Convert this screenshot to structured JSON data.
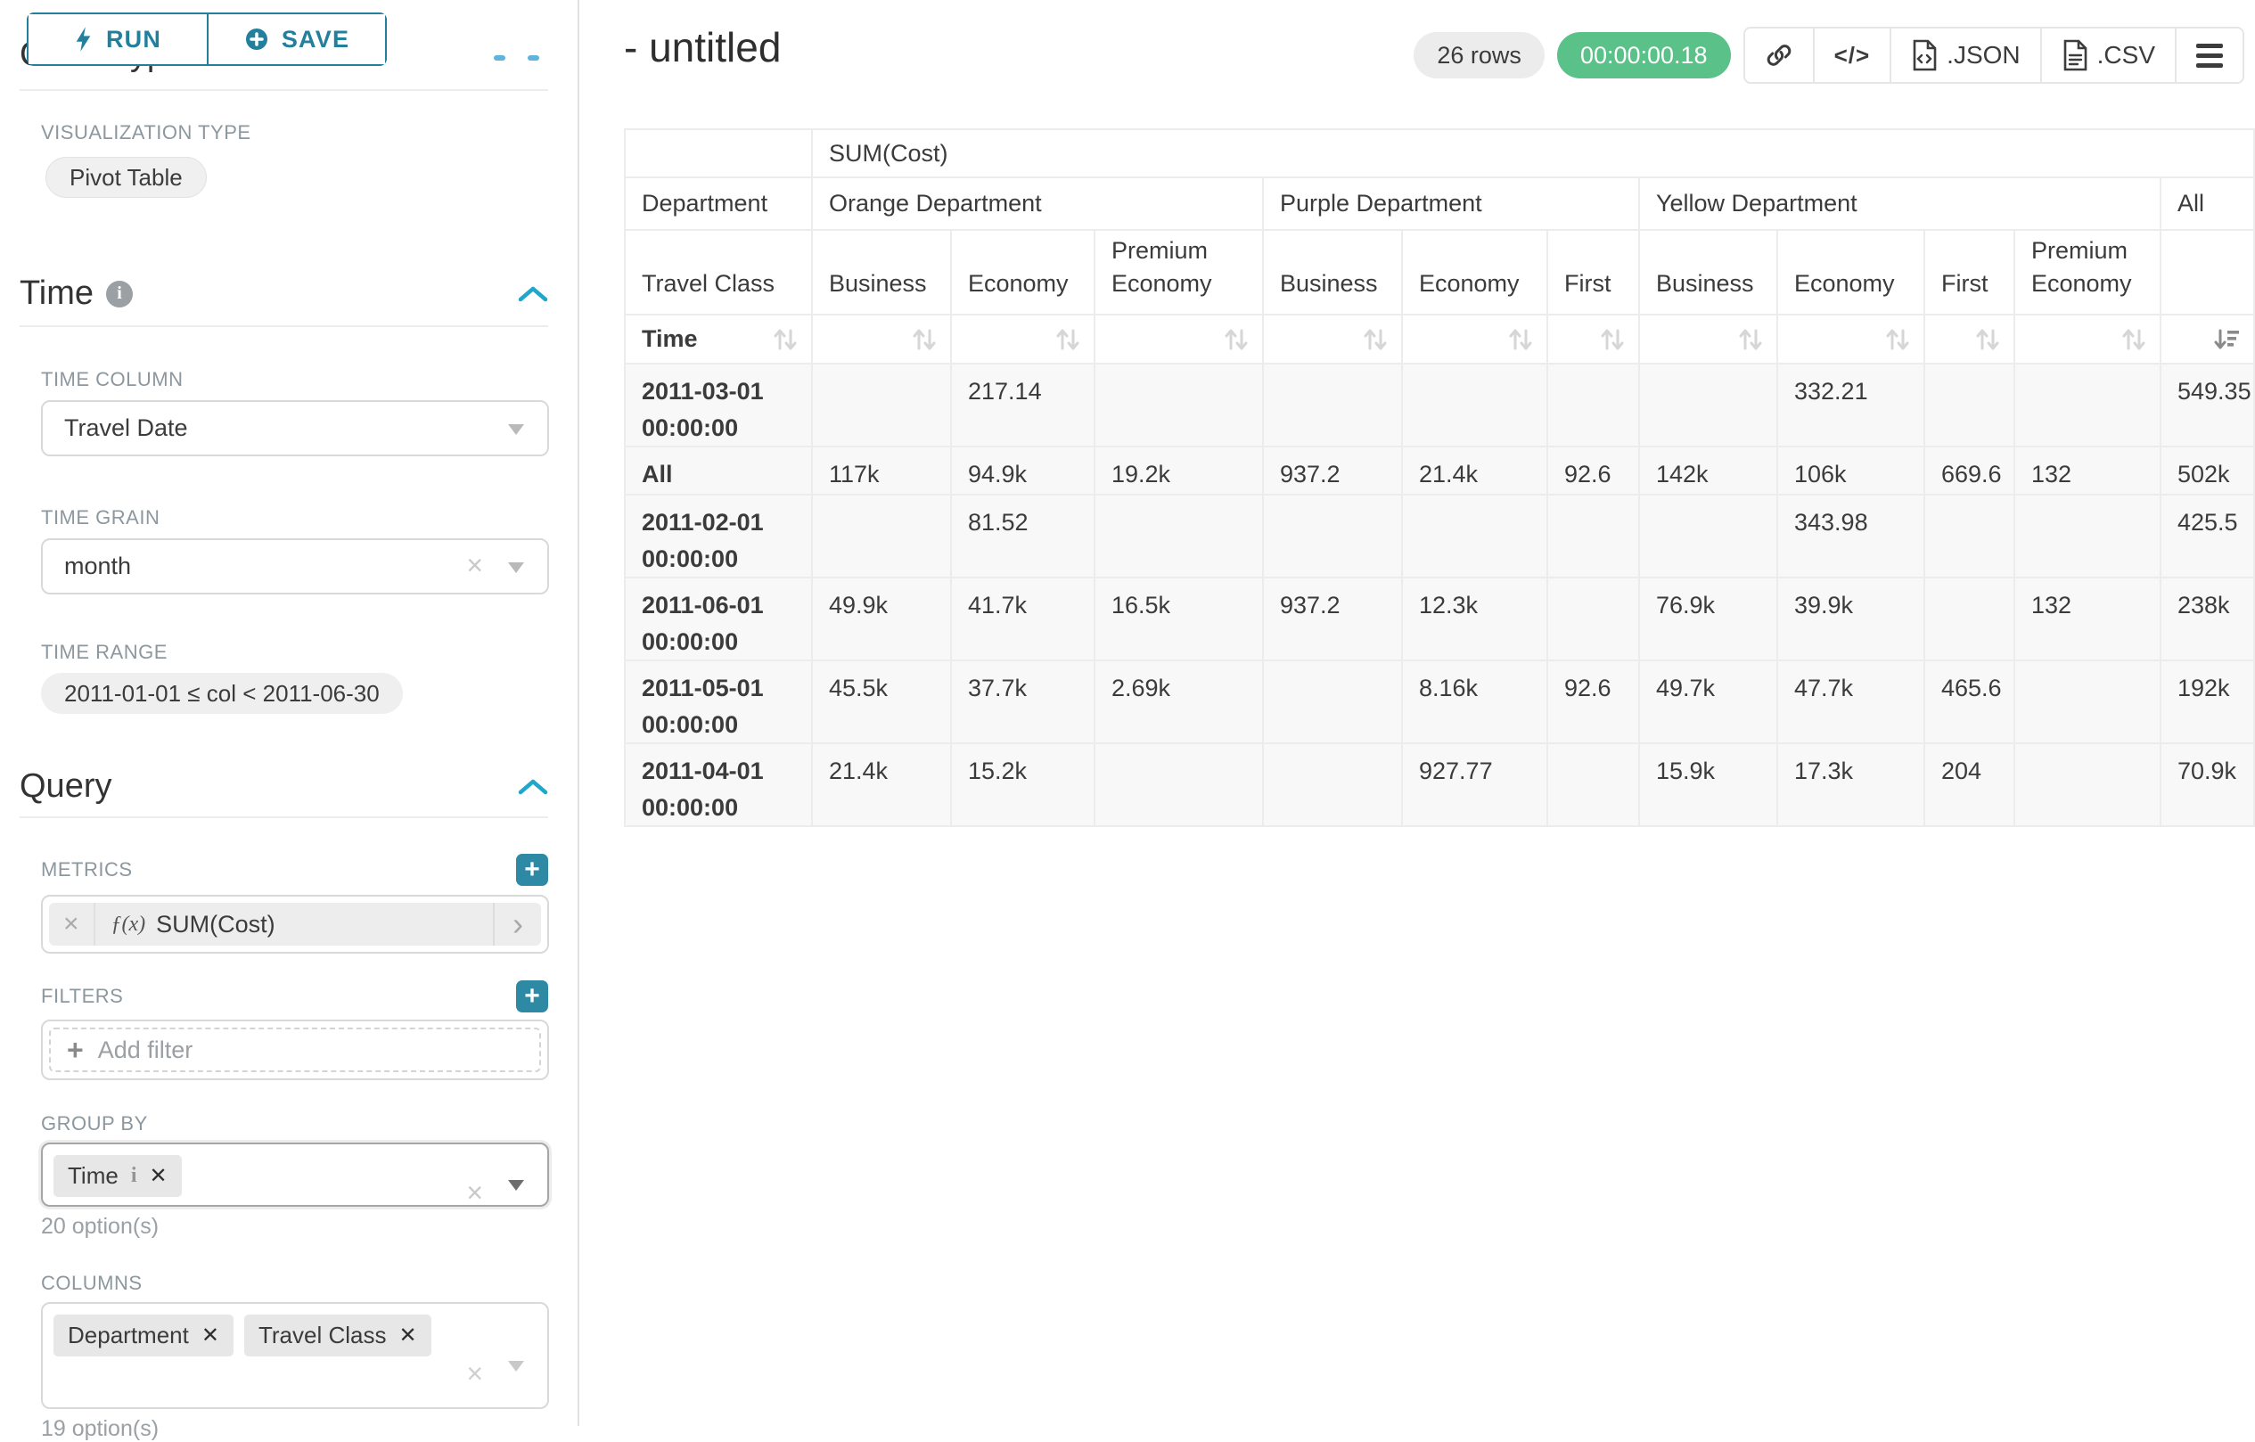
{
  "colors": {
    "accent": "#20a7c9",
    "accent_dark": "#22809c",
    "plus_button": "#2e89a5",
    "success": "#5ac189"
  },
  "sidebar": {
    "run_label": "RUN",
    "save_label": "SAVE",
    "chart_type_heading": "Chart Type",
    "visualization": {
      "label": "VISUALIZATION TYPE",
      "value": "Pivot Table"
    },
    "time_section": {
      "title": "Time",
      "info_icon": "i",
      "time_column": {
        "label": "TIME COLUMN",
        "value": "Travel Date"
      },
      "time_grain": {
        "label": "TIME GRAIN",
        "value": "month"
      },
      "time_range": {
        "label": "TIME RANGE",
        "value": "2011-01-01 ≤ col < 2011-06-30"
      }
    },
    "query_section": {
      "title": "Query",
      "metrics": {
        "label": "METRICS",
        "fx": "ƒ(x)",
        "value": "SUM(Cost)"
      },
      "filters": {
        "label": "FILTERS",
        "placeholder": "Add filter"
      },
      "group_by": {
        "label": "GROUP BY",
        "tags": [
          "Time"
        ],
        "options_note": "20 option(s)"
      },
      "columns": {
        "label": "COLUMNS",
        "tags": [
          "Department",
          "Travel Class"
        ],
        "options_note": "19 option(s)"
      }
    }
  },
  "header": {
    "title": "- untitled",
    "rows_badge": "26 rows",
    "timer": "00:00:00.18",
    "code_glyph": "</>",
    "export_json": ".JSON",
    "export_csv": ".CSV"
  },
  "pivot_table": {
    "corner_metric": "SUM(Cost)",
    "row_dim_label": "Department",
    "col_dim_label": "Travel Class",
    "sort_row_label": "Time",
    "groups": [
      {
        "label": "Orange Department",
        "columns": [
          "Business",
          "Economy",
          "Premium Economy"
        ]
      },
      {
        "label": "Purple Department",
        "columns": [
          "Business",
          "Economy",
          "First"
        ]
      },
      {
        "label": "Yellow Department",
        "columns": [
          "Business",
          "Economy",
          "First",
          "Premium Economy"
        ]
      },
      {
        "label": "All",
        "columns": [
          ""
        ]
      }
    ],
    "rows": [
      {
        "label": "2011-03-01 00:00:00",
        "values": [
          "",
          "217.14",
          "",
          "",
          "",
          "",
          "",
          "332.21",
          "",
          "",
          "549.35"
        ]
      },
      {
        "label": "All",
        "values": [
          "117k",
          "94.9k",
          "19.2k",
          "937.2",
          "21.4k",
          "92.6",
          "142k",
          "106k",
          "669.6",
          "132",
          "502k"
        ]
      },
      {
        "label": "2011-02-01 00:00:00",
        "values": [
          "",
          "81.52",
          "",
          "",
          "",
          "",
          "",
          "343.98",
          "",
          "",
          "425.5"
        ]
      },
      {
        "label": "2011-06-01 00:00:00",
        "values": [
          "49.9k",
          "41.7k",
          "16.5k",
          "937.2",
          "12.3k",
          "",
          "76.9k",
          "39.9k",
          "",
          "132",
          "238k"
        ]
      },
      {
        "label": "2011-05-01 00:00:00",
        "values": [
          "45.5k",
          "37.7k",
          "2.69k",
          "",
          "8.16k",
          "92.6",
          "49.7k",
          "47.7k",
          "465.6",
          "",
          "192k"
        ]
      },
      {
        "label": "2011-04-01 00:00:00",
        "values": [
          "21.4k",
          "15.2k",
          "",
          "",
          "927.77",
          "",
          "15.9k",
          "17.3k",
          "204",
          "",
          "70.9k"
        ]
      }
    ]
  }
}
